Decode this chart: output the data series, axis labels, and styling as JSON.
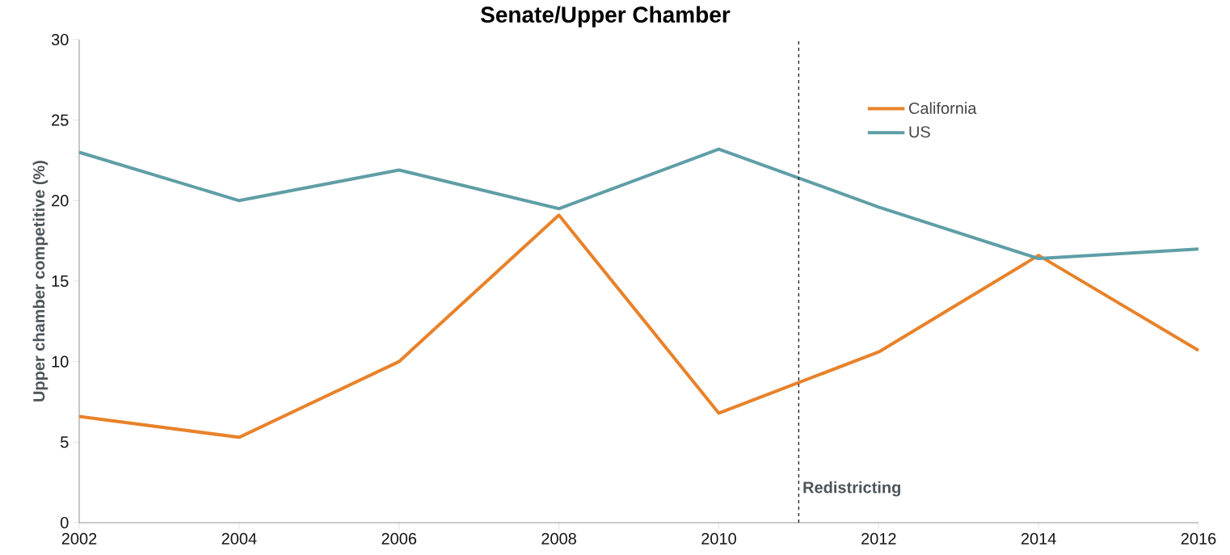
{
  "chart_data": {
    "type": "line",
    "title": "Senate/Upper Chamber",
    "ylabel": "Upper chamber competitive (%)",
    "x": [
      2002,
      2004,
      2006,
      2008,
      2010,
      2012,
      2014,
      2016
    ],
    "series": [
      {
        "name": "California",
        "color": "#e8822a",
        "values": [
          6.6,
          5.3,
          10.0,
          19.1,
          6.8,
          10.6,
          16.6,
          10.7
        ]
      },
      {
        "name": "US",
        "color": "#5f9ea6",
        "values": [
          23.0,
          20.0,
          21.9,
          19.5,
          23.2,
          19.6,
          16.4,
          17.0
        ]
      }
    ],
    "xlim": [
      2002,
      2016
    ],
    "xticks": [
      2002,
      2004,
      2006,
      2008,
      2010,
      2012,
      2014,
      2016
    ],
    "ylim": [
      0,
      30
    ],
    "yticks": [
      0,
      5,
      10,
      15,
      20,
      25,
      30
    ],
    "ref_lines": [
      {
        "axis": "x",
        "value": 2011,
        "label": "Redistricting",
        "color": "#222222",
        "line_style": "dashed"
      }
    ],
    "legend": "top right",
    "marker": "none",
    "line_style": "solid"
  }
}
